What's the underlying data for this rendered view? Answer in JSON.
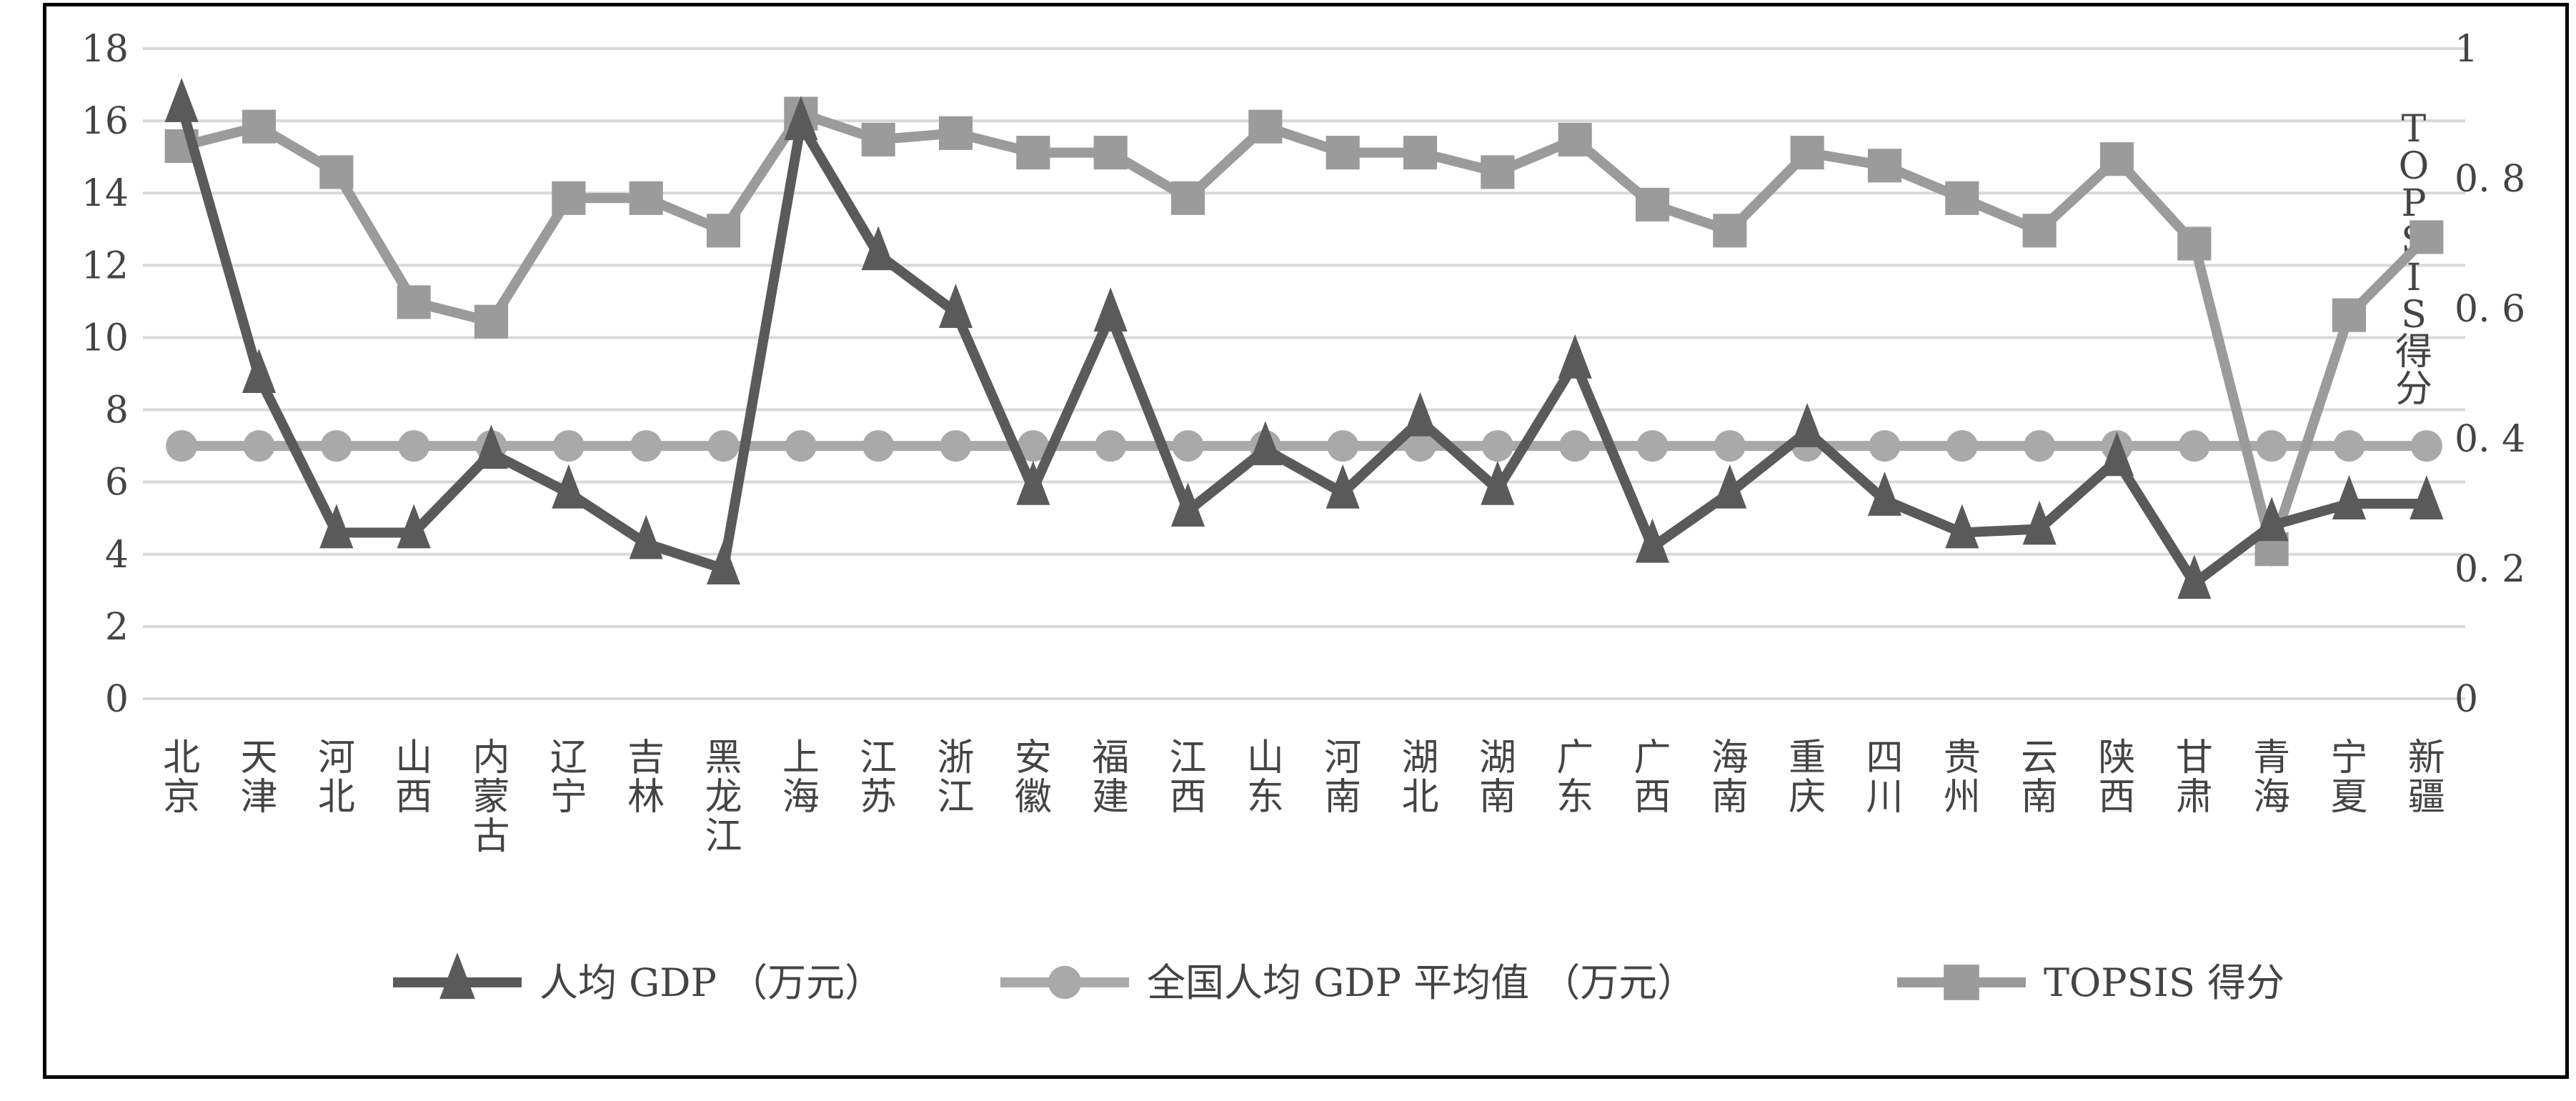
{
  "chart_data": {
    "type": "line",
    "categories": [
      [
        "北",
        "京"
      ],
      [
        "天",
        "津"
      ],
      [
        "河",
        "北"
      ],
      [
        "山",
        "西"
      ],
      [
        "内",
        "蒙",
        "古"
      ],
      [
        "辽",
        "宁"
      ],
      [
        "吉",
        "林"
      ],
      [
        "黑",
        "龙",
        "江"
      ],
      [
        "上",
        "海"
      ],
      [
        "江",
        "苏"
      ],
      [
        "浙",
        "江"
      ],
      [
        "安",
        "徽"
      ],
      [
        "福",
        "建"
      ],
      [
        "江",
        "西"
      ],
      [
        "山",
        "东"
      ],
      [
        "河",
        "南"
      ],
      [
        "湖",
        "北"
      ],
      [
        "湖",
        "南"
      ],
      [
        "广",
        "东"
      ],
      [
        "广",
        "西"
      ],
      [
        "海",
        "南"
      ],
      [
        "重",
        "庆"
      ],
      [
        "四",
        "川"
      ],
      [
        "贵",
        "州"
      ],
      [
        "云",
        "南"
      ],
      [
        "陕",
        "西"
      ],
      [
        "甘",
        "肃"
      ],
      [
        "青",
        "海"
      ],
      [
        "宁",
        "夏"
      ],
      [
        "新",
        "疆"
      ]
    ],
    "y_left": {
      "min": 0,
      "max": 18,
      "ticks": [
        "0",
        "2",
        "4",
        "6",
        "8",
        "10",
        "12",
        "14",
        "16",
        "18"
      ]
    },
    "y_right": {
      "min": 0,
      "max": 1,
      "ticks": [
        "0",
        "0. 2",
        "0. 4",
        "0. 6",
        "0. 8",
        "1"
      ],
      "label": [
        "T",
        "O",
        "P",
        "S",
        "I",
        "S",
        "得",
        "分"
      ]
    },
    "grid": true,
    "legend_position": "bottom",
    "series": [
      {
        "name": "人均 GDP （万元）",
        "axis": "left",
        "marker": "triangle",
        "color": "#5a5a5a",
        "values": [
          16.4,
          8.9,
          4.6,
          4.6,
          6.8,
          5.7,
          4.3,
          3.6,
          15.9,
          12.3,
          10.7,
          5.8,
          10.6,
          5.2,
          6.9,
          5.7,
          7.7,
          5.8,
          9.3,
          4.2,
          5.7,
          7.4,
          5.5,
          4.6,
          4.7,
          6.6,
          3.2,
          4.8,
          5.4,
          5.4
        ]
      },
      {
        "name": "全国人均 GDP 平均值 （万元）",
        "axis": "left",
        "marker": "circle",
        "color": "#a9a9a9",
        "values": [
          7.0,
          7.0,
          7.0,
          7.0,
          7.0,
          7.0,
          7.0,
          7.0,
          7.0,
          7.0,
          7.0,
          7.0,
          7.0,
          7.0,
          7.0,
          7.0,
          7.0,
          7.0,
          7.0,
          7.0,
          7.0,
          7.0,
          7.0,
          7.0,
          7.0,
          7.0,
          7.0,
          7.0,
          7.0,
          7.0
        ]
      },
      {
        "name": "TOPSIS 得分",
        "axis": "right",
        "marker": "square",
        "color": "#9b9b9b",
        "values": [
          0.85,
          0.88,
          0.81,
          0.61,
          0.58,
          0.77,
          0.77,
          0.72,
          0.9,
          0.86,
          0.87,
          0.84,
          0.84,
          0.77,
          0.88,
          0.84,
          0.84,
          0.81,
          0.86,
          0.76,
          0.72,
          0.84,
          0.82,
          0.77,
          0.72,
          0.83,
          0.7,
          0.23,
          0.59,
          0.71
        ]
      }
    ]
  }
}
